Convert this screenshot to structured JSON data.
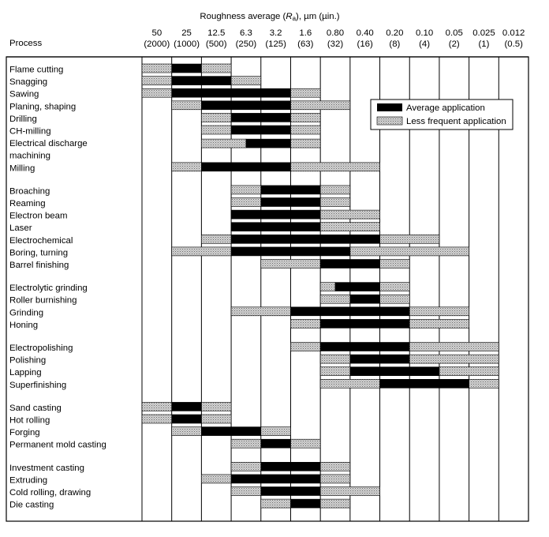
{
  "chart_data": {
    "type": "table",
    "title_prefix": "Roughness average (",
    "title_symbol": "R",
    "title_subscript": "a",
    "title_suffix": "), µm (µin.)",
    "row_header": "Process",
    "columns_um": [
      "50",
      "25",
      "12.5",
      "6.3",
      "3.2",
      "1.6",
      "0.80",
      "0.40",
      "0.20",
      "0.10",
      "0.05",
      "0.025",
      "0.012"
    ],
    "columns_uin": [
      "(2000)",
      "(1000)",
      "(500)",
      "(250)",
      "(125)",
      "(63)",
      "(32)",
      "(16)",
      "(8)",
      "(4)",
      "(2)",
      "(1)",
      "(0.5)"
    ],
    "legend": {
      "average": "Average application",
      "less_frequent": "Less frequent application"
    },
    "colors": {
      "average": "#000000",
      "less_frequent": "#bdbdbd"
    },
    "bar_units": "column index from 50 µm (0) to 0.012 µm (12); spans given as [start, end]",
    "processes": [
      {
        "name": "Flame cutting",
        "group": 1,
        "avg": [
          [
            1,
            2
          ]
        ],
        "less": [
          [
            0,
            1
          ],
          [
            2,
            3
          ]
        ]
      },
      {
        "name": "Snagging",
        "group": 1,
        "avg": [
          [
            1,
            3
          ]
        ],
        "less": [
          [
            0,
            1
          ],
          [
            3,
            4
          ]
        ]
      },
      {
        "name": "Sawing",
        "group": 1,
        "avg": [
          [
            1,
            5
          ]
        ],
        "less": [
          [
            0,
            1
          ],
          [
            5,
            6
          ]
        ]
      },
      {
        "name": "Planing, shaping",
        "group": 1,
        "avg": [
          [
            2,
            5
          ]
        ],
        "less": [
          [
            1,
            2
          ],
          [
            5,
            7
          ]
        ]
      },
      {
        "name": "Drilling",
        "group": 1,
        "avg": [
          [
            3,
            5
          ]
        ],
        "less": [
          [
            2,
            3
          ],
          [
            5,
            6
          ]
        ]
      },
      {
        "name": "CH-milling",
        "group": 1,
        "avg": [
          [
            3,
            5
          ]
        ],
        "less": [
          [
            2,
            3
          ],
          [
            5,
            6
          ]
        ]
      },
      {
        "name": "Electrical discharge",
        "name2": "machining",
        "group": 1,
        "avg": [
          [
            3.5,
            5
          ]
        ],
        "less": [
          [
            2,
            3.5
          ],
          [
            5,
            6
          ]
        ]
      },
      {
        "name": "Milling",
        "group": 1,
        "avg": [
          [
            2,
            5
          ]
        ],
        "less": [
          [
            1,
            2
          ],
          [
            5,
            8
          ]
        ]
      },
      {
        "name": "Broaching",
        "group": 2,
        "avg": [
          [
            4,
            6
          ]
        ],
        "less": [
          [
            3,
            4
          ],
          [
            6,
            7
          ]
        ]
      },
      {
        "name": "Reaming",
        "group": 2,
        "avg": [
          [
            4,
            6
          ]
        ],
        "less": [
          [
            3,
            4
          ],
          [
            6,
            7
          ]
        ]
      },
      {
        "name": "Electron beam",
        "group": 2,
        "avg": [
          [
            3,
            6
          ]
        ],
        "less": [
          [
            6,
            8
          ]
        ]
      },
      {
        "name": "Laser",
        "group": 2,
        "avg": [
          [
            3,
            6
          ]
        ],
        "less": [
          [
            6,
            8
          ]
        ]
      },
      {
        "name": "Electrochemical",
        "group": 2,
        "avg": [
          [
            3,
            8
          ]
        ],
        "less": [
          [
            2,
            3
          ],
          [
            8,
            10
          ]
        ]
      },
      {
        "name": "Boring, turning",
        "group": 2,
        "avg": [
          [
            3,
            7
          ]
        ],
        "less": [
          [
            1,
            3
          ],
          [
            7,
            11
          ]
        ]
      },
      {
        "name": "Barrel finishing",
        "group": 2,
        "avg": [
          [
            6,
            8
          ]
        ],
        "less": [
          [
            4,
            6
          ],
          [
            8,
            9
          ]
        ]
      },
      {
        "name": "Electrolytic grinding",
        "group": 3,
        "avg": [
          [
            6.5,
            8
          ]
        ],
        "less": [
          [
            6,
            6.5
          ],
          [
            8,
            9
          ]
        ]
      },
      {
        "name": "Roller burnishing",
        "group": 3,
        "avg": [
          [
            7,
            8
          ]
        ],
        "less": [
          [
            6,
            7
          ],
          [
            8,
            9
          ]
        ]
      },
      {
        "name": "Grinding",
        "group": 3,
        "avg": [
          [
            5,
            9
          ]
        ],
        "less": [
          [
            3,
            5
          ],
          [
            9,
            11
          ]
        ]
      },
      {
        "name": "Honing",
        "group": 3,
        "avg": [
          [
            6,
            9
          ]
        ],
        "less": [
          [
            5,
            6
          ],
          [
            9,
            11
          ]
        ]
      },
      {
        "name": "Electropolishing",
        "group": 4,
        "avg": [
          [
            6,
            9
          ]
        ],
        "less": [
          [
            5,
            6
          ],
          [
            9,
            12
          ]
        ]
      },
      {
        "name": "Polishing",
        "group": 4,
        "avg": [
          [
            7,
            9
          ]
        ],
        "less": [
          [
            6,
            7
          ],
          [
            9,
            12
          ]
        ]
      },
      {
        "name": "Lapping",
        "group": 4,
        "avg": [
          [
            7,
            10
          ]
        ],
        "less": [
          [
            6,
            7
          ],
          [
            10,
            12
          ]
        ]
      },
      {
        "name": "Superfinishing",
        "group": 4,
        "avg": [
          [
            8,
            11
          ]
        ],
        "less": [
          [
            6,
            8
          ],
          [
            11,
            12
          ]
        ]
      },
      {
        "name": "Sand casting",
        "group": 5,
        "avg": [
          [
            1,
            2
          ]
        ],
        "less": [
          [
            0,
            1
          ],
          [
            2,
            3
          ]
        ]
      },
      {
        "name": "Hot rolling",
        "group": 5,
        "avg": [
          [
            1,
            2
          ]
        ],
        "less": [
          [
            0,
            1
          ],
          [
            2,
            3
          ]
        ]
      },
      {
        "name": "Forging",
        "group": 5,
        "avg": [
          [
            2,
            4
          ]
        ],
        "less": [
          [
            1,
            2
          ],
          [
            4,
            5
          ]
        ]
      },
      {
        "name": "Permanent mold casting",
        "group": 5,
        "avg": [
          [
            4,
            5
          ]
        ],
        "less": [
          [
            3,
            4
          ],
          [
            5,
            6
          ]
        ]
      },
      {
        "name": "Investment casting",
        "group": 6,
        "avg": [
          [
            4,
            6
          ]
        ],
        "less": [
          [
            3,
            4
          ],
          [
            6,
            7
          ]
        ]
      },
      {
        "name": "Extruding",
        "group": 6,
        "avg": [
          [
            3,
            6
          ]
        ],
        "less": [
          [
            2,
            3
          ],
          [
            6,
            7
          ]
        ]
      },
      {
        "name": "Cold rolling, drawing",
        "group": 6,
        "avg": [
          [
            4,
            6
          ]
        ],
        "less": [
          [
            3,
            4
          ],
          [
            6,
            8
          ]
        ]
      },
      {
        "name": "Die casting",
        "group": 6,
        "avg": [
          [
            5,
            6
          ]
        ],
        "less": [
          [
            4,
            5
          ],
          [
            6,
            7
          ]
        ]
      }
    ]
  }
}
